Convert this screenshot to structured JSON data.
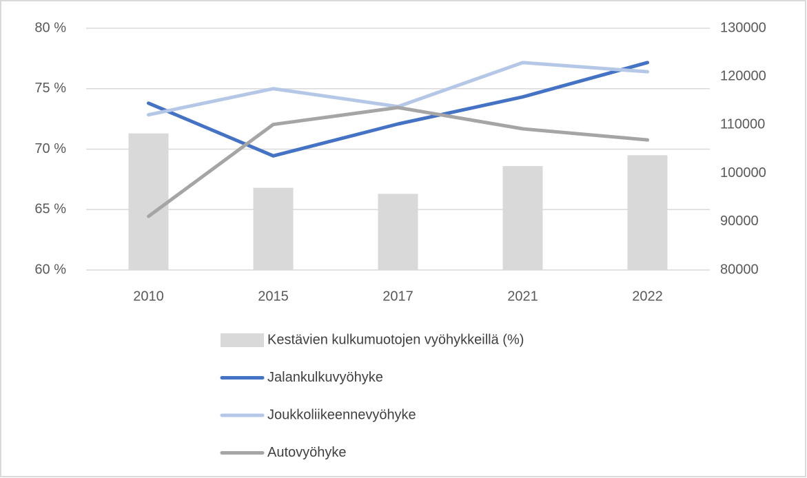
{
  "chart_data": {
    "type": "bar_line",
    "categories": [
      "2010",
      "2015",
      "2017",
      "2021",
      "2022"
    ],
    "series": [
      {
        "name": "Kestävien kulkumuotojen vyöhykkeillä (%)",
        "type": "bar",
        "color": "#d9d9d9",
        "axis": "y",
        "values": [
          71.3,
          66.8,
          66.3,
          68.6,
          69.5
        ]
      },
      {
        "name": "Jalankulkuvyöhyke",
        "type": "line",
        "color": "#4472c4",
        "axis": "y2",
        "values": [
          114500,
          103600,
          110200,
          115800,
          122900
        ]
      },
      {
        "name": "Joukkoliikeennevyöhyke",
        "type": "line",
        "color": "#b4c7e7",
        "axis": "y2",
        "values": [
          112100,
          117500,
          113800,
          122900,
          121000
        ]
      },
      {
        "name": "Autovyöhyke",
        "type": "line",
        "color": "#a5a5a5",
        "axis": "y2",
        "values": [
          91100,
          110100,
          113600,
          109200,
          106900
        ]
      }
    ],
    "ylim": [
      60,
      80
    ],
    "yticks": [
      {
        "value": 60,
        "label": "60 %"
      },
      {
        "value": 65,
        "label": "65 %"
      },
      {
        "value": 70,
        "label": "70 %"
      },
      {
        "value": 75,
        "label": "75 %"
      },
      {
        "value": 80,
        "label": "80 %"
      }
    ],
    "y2lim": [
      80000,
      130000
    ],
    "y2ticks": [
      80000,
      90000,
      100000,
      110000,
      120000,
      130000
    ],
    "grid": true,
    "legend": "bottom"
  }
}
